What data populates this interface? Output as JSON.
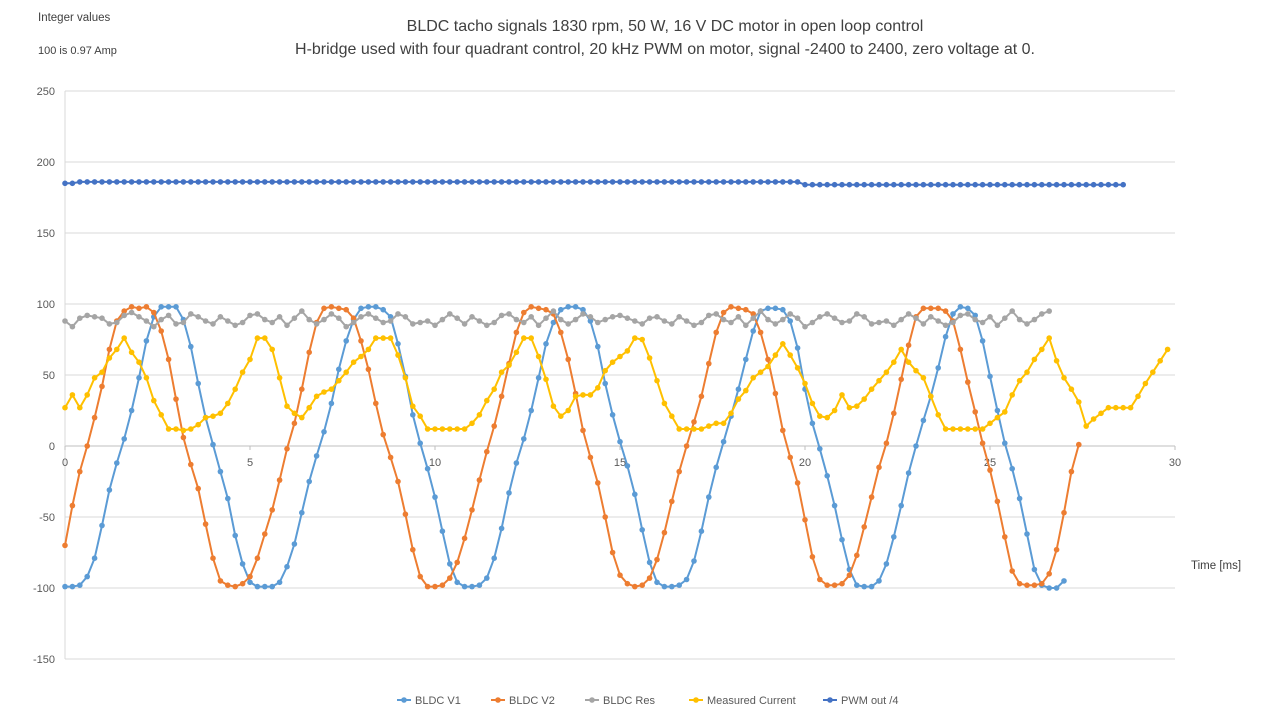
{
  "notes": {
    "line1": "Integer values",
    "line2": "100 is 0.97 Amp"
  },
  "chart_data": {
    "type": "line",
    "title": "BLDC tacho signals 1830 rpm, 50 W, 16 V DC motor in open loop control",
    "subtitle": "H-bridge used with four quadrant control, 20 kHz PWM on motor, signal -2400 to 2400, zero voltage at 0.",
    "xlabel": "Time [ms]",
    "ylabel": "",
    "xlim": [
      0,
      30
    ],
    "ylim": [
      -150,
      250
    ],
    "xticks": [
      0,
      5,
      10,
      15,
      20,
      25,
      30
    ],
    "yticks": [
      -150,
      -100,
      -50,
      0,
      50,
      100,
      150,
      200,
      250
    ],
    "grid": true,
    "legend_position": "bottom",
    "x_step": 0.2,
    "series": [
      {
        "name": "BLDC V1",
        "color": "#5B9BD5",
        "values": [
          -99,
          -99,
          -98,
          -92,
          -79,
          -56,
          -31,
          -12,
          5,
          25,
          48,
          74,
          91,
          98,
          98,
          98,
          89,
          70,
          44,
          20,
          1,
          -18,
          -37,
          -63,
          -83,
          -96,
          -99,
          -99,
          -99,
          -96,
          -85,
          -69,
          -47,
          -25,
          -7,
          10,
          30,
          54,
          74,
          89,
          97,
          98,
          98,
          96,
          91,
          72,
          49,
          22,
          2,
          -16,
          -36,
          -60,
          -83,
          -96,
          -99,
          -99,
          -98,
          -93,
          -79,
          -58,
          -33,
          -12,
          5,
          25,
          48,
          72,
          87,
          96,
          98,
          98,
          96,
          88,
          70,
          44,
          22,
          3,
          -14,
          -34,
          -59,
          -82,
          -96,
          -99,
          -99,
          -98,
          -94,
          -81,
          -60,
          -36,
          -15,
          3,
          21,
          40,
          61,
          81,
          95,
          97,
          97,
          96,
          88,
          69,
          40,
          16,
          -2,
          -21,
          -42,
          -66,
          -87,
          -98,
          -99,
          -99,
          -95,
          -83,
          -64,
          -42,
          -19,
          0,
          18,
          35,
          55,
          77,
          93,
          98,
          97,
          92,
          74,
          49,
          25,
          2,
          -16,
          -37,
          -62,
          -87,
          -98,
          -100,
          -100,
          -95
        ]
      },
      {
        "name": "BLDC V2",
        "color": "#ED7D31",
        "values": [
          -70,
          -42,
          -18,
          0,
          20,
          42,
          68,
          88,
          95,
          98,
          97,
          98,
          94,
          81,
          61,
          33,
          6,
          -13,
          -30,
          -55,
          -79,
          -95,
          -98,
          -99,
          -97,
          -92,
          -79,
          -62,
          -45,
          -24,
          -2,
          16,
          40,
          66,
          87,
          97,
          98,
          97,
          96,
          90,
          74,
          54,
          30,
          8,
          -8,
          -25,
          -48,
          -73,
          -92,
          -99,
          -99,
          -98,
          -93,
          -82,
          -65,
          -45,
          -24,
          -4,
          14,
          35,
          58,
          80,
          94,
          98,
          97,
          96,
          93,
          80,
          61,
          37,
          11,
          -8,
          -26,
          -50,
          -75,
          -91,
          -97,
          -99,
          -98,
          -93,
          -80,
          -61,
          -39,
          -18,
          0,
          17,
          35,
          58,
          80,
          94,
          98,
          97,
          96,
          93,
          80,
          61,
          37,
          11,
          -8,
          -26,
          -52,
          -78,
          -94,
          -98,
          -98,
          -97,
          -91,
          -77,
          -57,
          -36,
          -15,
          2,
          23,
          47,
          71,
          91,
          97,
          97,
          97,
          95,
          88,
          68,
          45,
          24,
          2,
          -17,
          -39,
          -64,
          -88,
          -97,
          -98,
          -98,
          -97,
          -90,
          -73,
          -47,
          -18,
          1
        ]
      },
      {
        "name": "BLDC Res",
        "color": "#A5A5A5",
        "values": [
          88,
          84,
          90,
          92,
          91,
          90,
          86,
          87,
          92,
          94,
          91,
          88,
          84,
          89,
          92,
          86,
          87,
          93,
          91,
          88,
          86,
          91,
          88,
          85,
          87,
          92,
          93,
          89,
          87,
          91,
          85,
          90,
          95,
          89,
          86,
          89,
          93,
          90,
          84,
          87,
          91,
          93,
          90,
          87,
          88,
          93,
          91,
          86,
          87,
          88,
          85,
          89,
          93,
          90,
          86,
          91,
          88,
          85,
          87,
          92,
          93,
          89,
          87,
          91,
          85,
          90,
          95,
          89,
          86,
          89,
          93,
          91,
          87,
          89,
          91,
          92,
          90,
          88,
          86,
          90,
          91,
          88,
          86,
          91,
          88,
          85,
          87,
          92,
          93,
          89,
          87,
          91,
          85,
          90,
          95,
          89,
          86,
          89,
          93,
          90,
          84,
          87,
          91,
          93,
          90,
          87,
          88,
          93,
          91,
          86,
          87,
          88,
          85,
          89,
          93,
          90,
          86,
          91,
          88,
          85,
          87,
          92,
          93,
          89,
          87,
          91,
          85,
          90,
          95,
          89,
          86,
          89,
          93,
          95
        ]
      },
      {
        "name": "Measured Current",
        "color": "#FFC000",
        "values": [
          27,
          36,
          27,
          36,
          48,
          52,
          62,
          68,
          76,
          66,
          59,
          48,
          32,
          22,
          12,
          12,
          11,
          12,
          15,
          20,
          21,
          23,
          30,
          40,
          52,
          61,
          76,
          76,
          68,
          48,
          28,
          23,
          20,
          27,
          35,
          38,
          40,
          46,
          52,
          59,
          63,
          68,
          76,
          76,
          76,
          64,
          48,
          28,
          21,
          12,
          12,
          12,
          12,
          12,
          12,
          16,
          22,
          32,
          40,
          52,
          57,
          66,
          76,
          76,
          63,
          47,
          28,
          21,
          25,
          35,
          36,
          36,
          41,
          53,
          59,
          63,
          67,
          76,
          75,
          62,
          46,
          30,
          21,
          12,
          12,
          12,
          12,
          14,
          16,
          16,
          23,
          33,
          39,
          48,
          52,
          56,
          64,
          72,
          64,
          55,
          44,
          30,
          21,
          20,
          25,
          36,
          27,
          28,
          33,
          40,
          46,
          52,
          59,
          68,
          59,
          53,
          48,
          35,
          22,
          12,
          12,
          12,
          12,
          12,
          12,
          16,
          20,
          24,
          36,
          46,
          52,
          61,
          68,
          76,
          60,
          48,
          40,
          31,
          14,
          19,
          23,
          27,
          27,
          27,
          27,
          35,
          44,
          52,
          60,
          68
        ]
      },
      {
        "name": "PWM out /4",
        "color": "#4472C4",
        "values": [
          185,
          185,
          186,
          186,
          186,
          186,
          186,
          186,
          186,
          186,
          186,
          186,
          186,
          186,
          186,
          186,
          186,
          186,
          186,
          186,
          186,
          186,
          186,
          186,
          186,
          186,
          186,
          186,
          186,
          186,
          186,
          186,
          186,
          186,
          186,
          186,
          186,
          186,
          186,
          186,
          186,
          186,
          186,
          186,
          186,
          186,
          186,
          186,
          186,
          186,
          186,
          186,
          186,
          186,
          186,
          186,
          186,
          186,
          186,
          186,
          186,
          186,
          186,
          186,
          186,
          186,
          186,
          186,
          186,
          186,
          186,
          186,
          186,
          186,
          186,
          186,
          186,
          186,
          186,
          186,
          186,
          186,
          186,
          186,
          186,
          186,
          186,
          186,
          186,
          186,
          186,
          186,
          186,
          186,
          186,
          186,
          186,
          186,
          186,
          186,
          184,
          184,
          184,
          184,
          184,
          184,
          184,
          184,
          184,
          184,
          184,
          184,
          184,
          184,
          184,
          184,
          184,
          184,
          184,
          184,
          184,
          184,
          184,
          184,
          184,
          184,
          184,
          184,
          184,
          184,
          184,
          184,
          184,
          184,
          184,
          184,
          184,
          184,
          184,
          184,
          184,
          184,
          184,
          184
        ]
      }
    ]
  }
}
